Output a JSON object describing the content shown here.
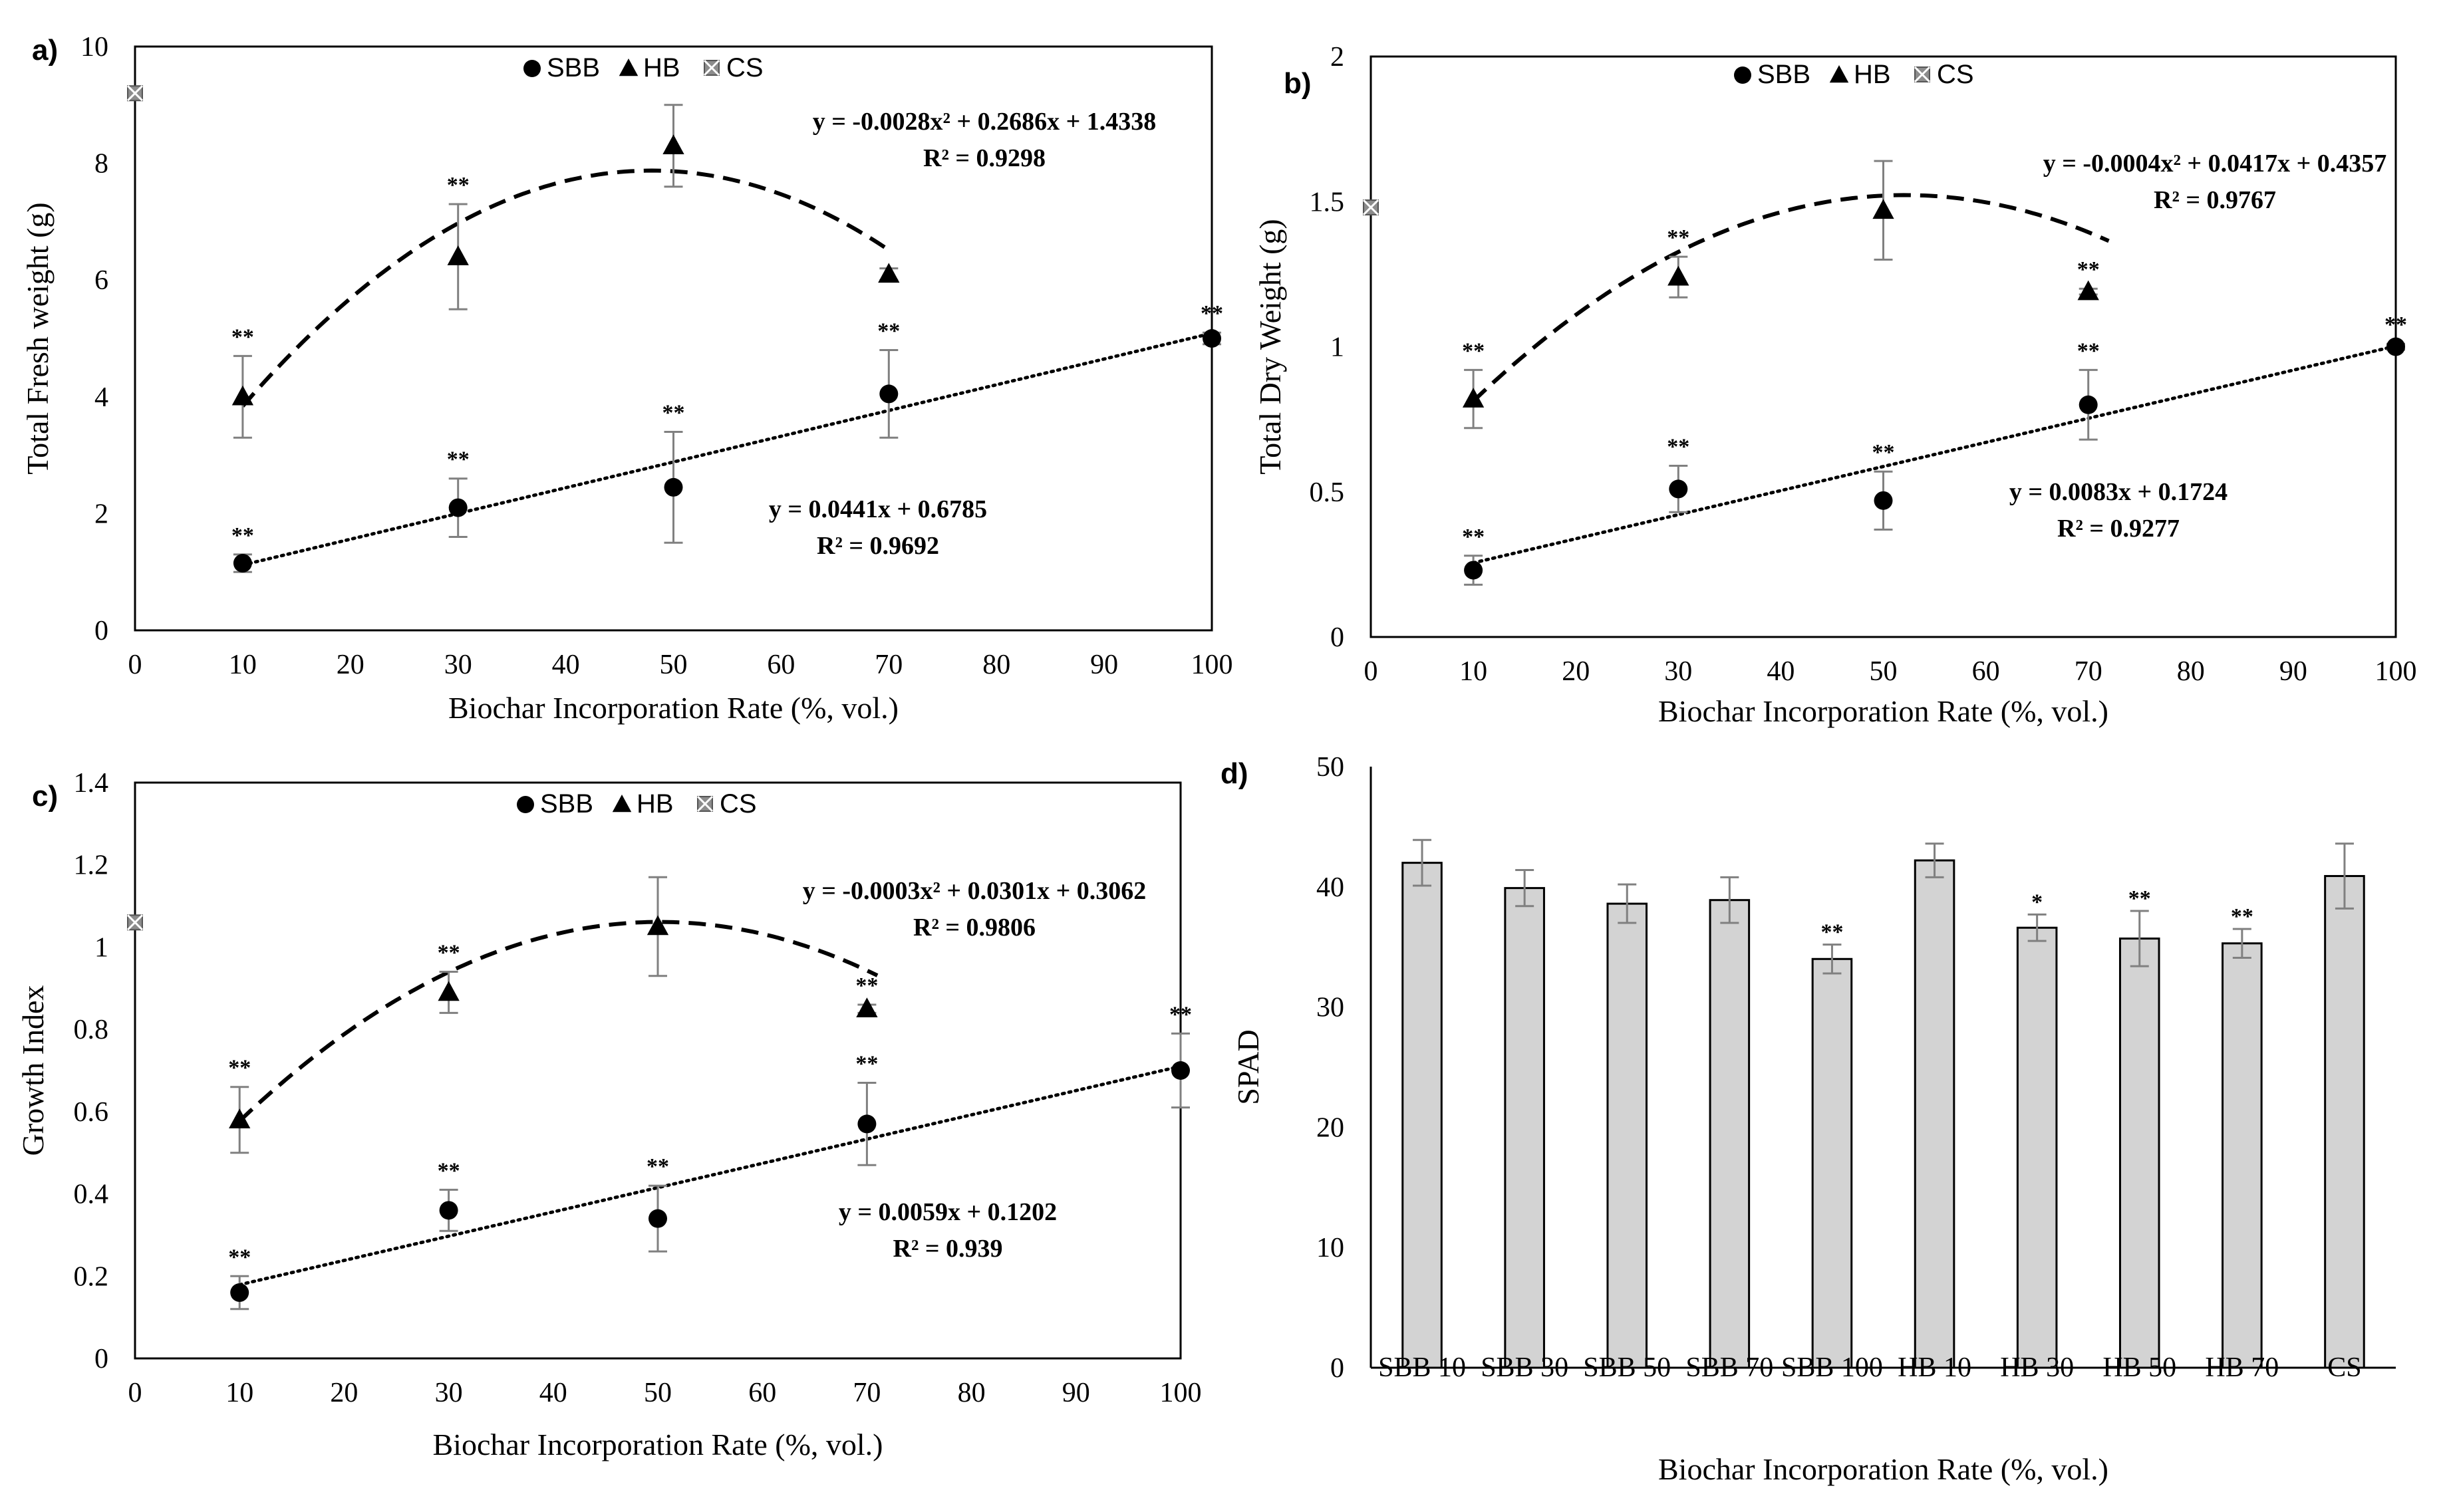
{
  "colors": {
    "axis": "#000000",
    "error_bar": "#808080",
    "bar_fill": "#d3d3d3",
    "marker": "#000000",
    "cs_marker": "#8c8c8c"
  },
  "chart_data": [
    {
      "panel": "a)",
      "type": "scatter",
      "ylabel": "Total Fresh weight (g)",
      "xlabel": "Biochar Incorporation Rate (%, vol.)",
      "xlim": [
        0,
        100
      ],
      "ylim": [
        0,
        10
      ],
      "x_ticks": [
        "0",
        "10",
        "20",
        "30",
        "40",
        "50",
        "60",
        "70",
        "80",
        "90",
        "100"
      ],
      "y_ticks": [
        "0",
        "2",
        "4",
        "6",
        "8",
        "10"
      ],
      "legend": [
        "SBB",
        "HB",
        "CS"
      ],
      "series": [
        {
          "name": "SBB",
          "marker": "circle",
          "x": [
            10,
            30,
            50,
            70,
            100
          ],
          "y": [
            1.15,
            2.1,
            2.45,
            4.05,
            5.0
          ],
          "err": [
            0.15,
            0.5,
            0.95,
            0.75,
            0.1
          ],
          "sig": [
            "**",
            "**",
            "**",
            "**",
            "**"
          ]
        },
        {
          "name": "HB",
          "marker": "triangle",
          "x": [
            10,
            30,
            50,
            70
          ],
          "y": [
            4.0,
            6.4,
            8.3,
            6.1
          ],
          "err": [
            0.7,
            0.9,
            0.7,
            0.1
          ],
          "sig": [
            "**",
            "**",
            "",
            ""
          ]
        },
        {
          "name": "CS",
          "marker": "cross-square",
          "x": [
            0
          ],
          "y": [
            9.2
          ],
          "err": [
            0
          ],
          "sig": [
            ""
          ]
        }
      ],
      "sbb_sig_label": "**",
      "hb_sig_label": "**",
      "fit_poly": {
        "a": -0.0028,
        "b": 0.2686,
        "c": 1.4338,
        "x_start": 10,
        "x_end": 70
      },
      "fit_lin": {
        "m": 0.0441,
        "b": 0.6785,
        "x_start": 10,
        "x_end": 100
      },
      "eq_poly": "y = -0.0028x² + 0.2686x + 1.4338",
      "r2_poly": "R² = 0.9298",
      "eq_lin": "y = 0.0441x + 0.6785",
      "r2_lin": "R² = 0.9692"
    },
    {
      "panel": "b)",
      "type": "scatter",
      "ylabel": "Total Dry Weight (g)",
      "xlabel": "Biochar Incorporation Rate (%, vol.)",
      "xlim": [
        0,
        100
      ],
      "ylim": [
        0,
        2
      ],
      "x_ticks": [
        "0",
        "10",
        "20",
        "30",
        "40",
        "50",
        "60",
        "70",
        "80",
        "90",
        "100"
      ],
      "y_ticks": [
        "0",
        "0.5",
        "1",
        "1.5",
        "2"
      ],
      "legend": [
        "SBB",
        "HB",
        "CS"
      ],
      "series": [
        {
          "name": "SBB",
          "marker": "circle",
          "x": [
            10,
            30,
            50,
            70,
            100
          ],
          "y": [
            0.23,
            0.51,
            0.47,
            0.8,
            1.0
          ],
          "err": [
            0.05,
            0.08,
            0.1,
            0.12,
            0.01
          ],
          "sig": [
            "**",
            "**",
            "**",
            "**",
            "**"
          ]
        },
        {
          "name": "HB",
          "marker": "triangle",
          "x": [
            10,
            30,
            50,
            70
          ],
          "y": [
            0.82,
            1.24,
            1.47,
            1.19
          ],
          "err": [
            0.1,
            0.07,
            0.17,
            0.01
          ],
          "sig": [
            "**",
            "**",
            "",
            "**"
          ]
        },
        {
          "name": "CS",
          "marker": "cross-square",
          "x": [
            0
          ],
          "y": [
            1.48
          ],
          "err": [
            0
          ],
          "sig": [
            ""
          ]
        }
      ],
      "fit_poly": {
        "a": -0.0004,
        "b": 0.0417,
        "c": 0.4357,
        "x_start": 10,
        "x_end": 72
      },
      "fit_lin": {
        "m": 0.0083,
        "b": 0.1724,
        "x_start": 10,
        "x_end": 100
      },
      "eq_poly": "y = -0.0004x² + 0.0417x + 0.4357",
      "r2_poly": "R² = 0.9767",
      "eq_lin": "y = 0.0083x + 0.1724",
      "r2_lin": "R² = 0.9277"
    },
    {
      "panel": "c)",
      "type": "scatter",
      "ylabel": "Growth Index",
      "xlabel": "Biochar Incorporation Rate (%, vol.)",
      "xlim": [
        0,
        100
      ],
      "ylim": [
        0,
        1.4
      ],
      "x_ticks": [
        "0",
        "10",
        "20",
        "30",
        "40",
        "50",
        "60",
        "70",
        "80",
        "90",
        "100"
      ],
      "y_ticks": [
        "0",
        "0.2",
        "0.4",
        "0.6",
        "0.8",
        "1",
        "1.2",
        "1.4"
      ],
      "legend": [
        "SBB",
        "HB",
        "CS"
      ],
      "series": [
        {
          "name": "SBB",
          "marker": "circle",
          "x": [
            10,
            30,
            50,
            70,
            100
          ],
          "y": [
            0.16,
            0.36,
            0.34,
            0.57,
            0.7
          ],
          "err": [
            0.04,
            0.05,
            0.08,
            0.1,
            0.09
          ],
          "sig": [
            "**",
            "**",
            "**",
            "**",
            "**"
          ]
        },
        {
          "name": "HB",
          "marker": "triangle",
          "x": [
            10,
            30,
            50,
            70
          ],
          "y": [
            0.58,
            0.89,
            1.05,
            0.85
          ],
          "err": [
            0.08,
            0.05,
            0.12,
            0.01
          ],
          "sig": [
            "**",
            "**",
            "",
            "**"
          ]
        },
        {
          "name": "CS",
          "marker": "cross-square",
          "x": [
            0
          ],
          "y": [
            1.06
          ],
          "err": [
            0
          ],
          "sig": [
            ""
          ]
        }
      ],
      "fit_poly": {
        "a": -0.0003,
        "b": 0.0301,
        "c": 0.3062,
        "x_start": 10,
        "x_end": 71
      },
      "fit_lin": {
        "m": 0.0059,
        "b": 0.1202,
        "x_start": 10,
        "x_end": 100
      },
      "eq_poly": "y = -0.0003x² + 0.0301x + 0.3062",
      "r2_poly": "R² = 0.9806",
      "eq_lin": "y = 0.0059x + 0.1202",
      "r2_lin": "R² = 0.939"
    },
    {
      "panel": "d)",
      "type": "bar",
      "ylabel": "SPAD",
      "xlabel": "Biochar Incorporation Rate (%, vol.)",
      "ylim": [
        0,
        50
      ],
      "y_ticks": [
        "0",
        "10",
        "20",
        "30",
        "40",
        "50"
      ],
      "categories": [
        "SBB 10",
        "SBB 30",
        "SBB 50",
        "SBB 70",
        "SBB 100",
        "HB 10",
        "HB 30",
        "HB 50",
        "HB 70",
        "CS"
      ],
      "values": [
        42.0,
        39.9,
        38.6,
        38.9,
        34.0,
        42.2,
        36.6,
        35.7,
        35.3,
        40.9
      ],
      "errors": [
        1.9,
        1.5,
        1.6,
        1.9,
        1.2,
        1.4,
        1.1,
        2.3,
        1.2,
        2.7
      ],
      "sig": [
        "",
        "",
        "",
        "",
        "**",
        "",
        "*",
        "**",
        "**",
        ""
      ]
    }
  ]
}
